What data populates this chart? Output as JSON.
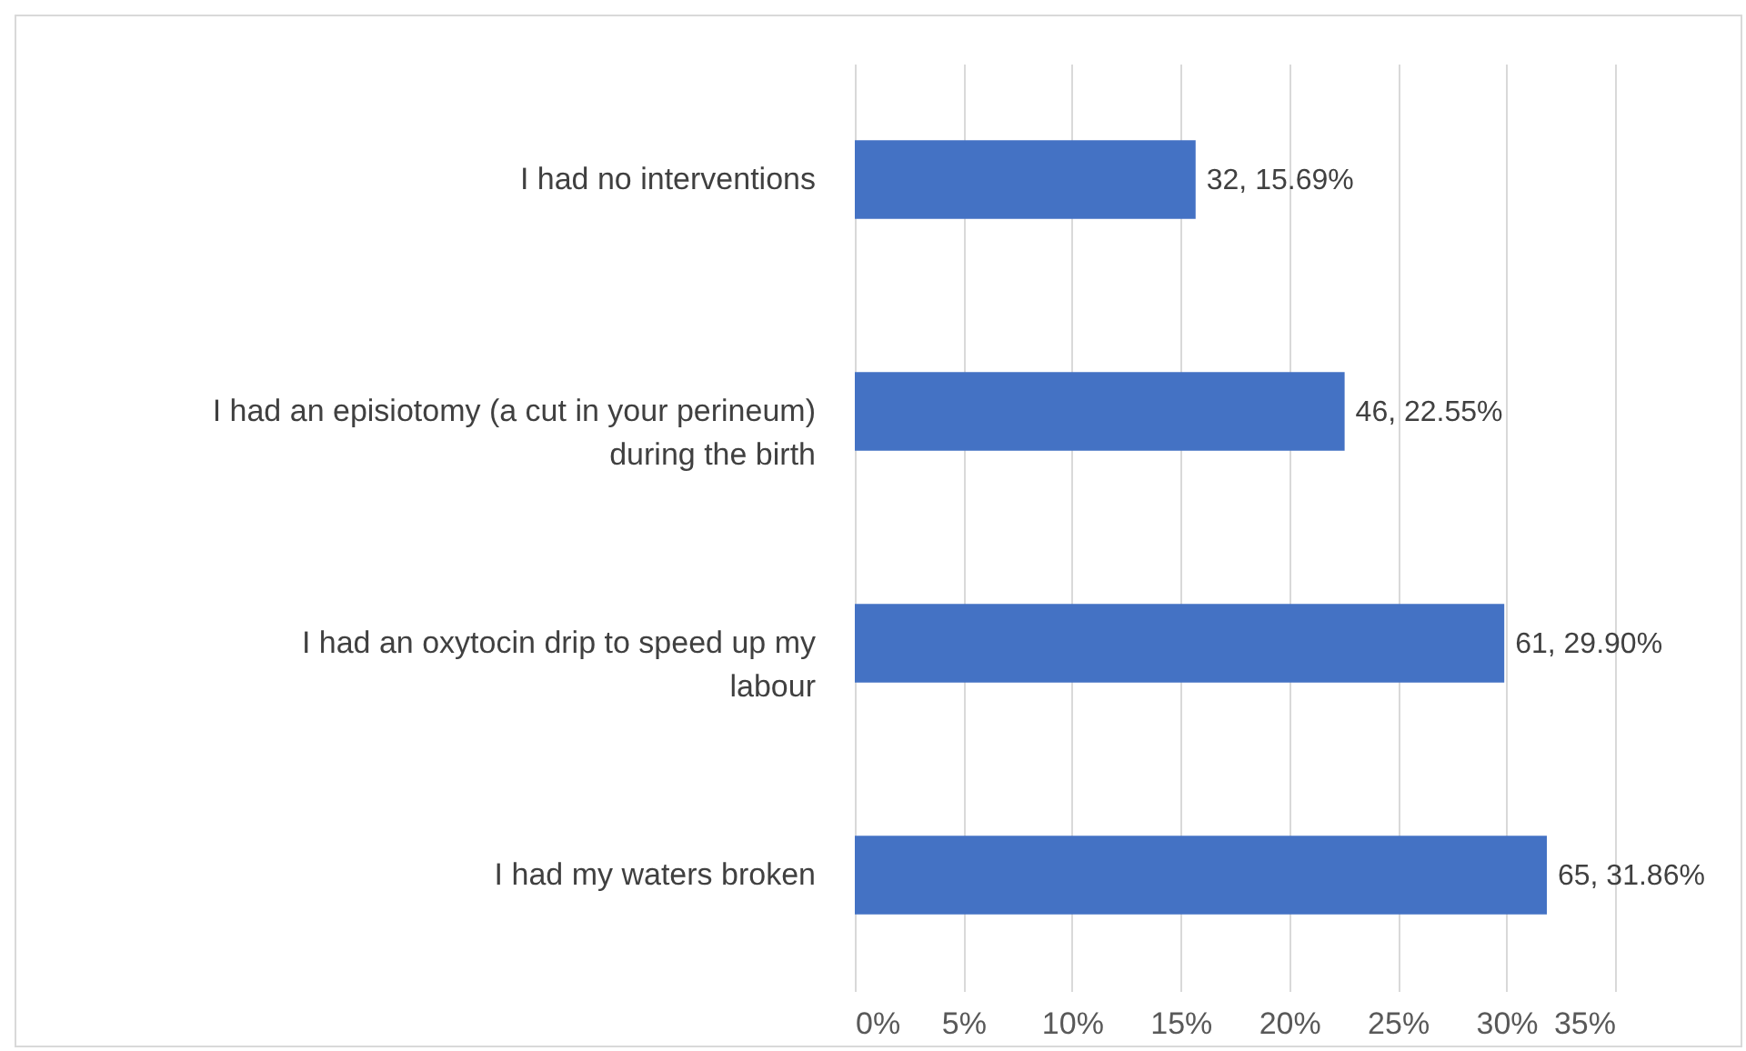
{
  "chart_data": {
    "type": "bar",
    "orientation": "horizontal",
    "categories": [
      "I had no interventions",
      "I had an episiotomy (a cut in your perineum)\nduring the birth",
      "I had an oxytocin drip to speed up my\nlabour",
      "I had my waters broken"
    ],
    "values": [
      15.69,
      22.55,
      29.9,
      31.86
    ],
    "value_labels": [
      "32, 15.69%",
      "46, 22.55%",
      "61, 29.90%",
      "65, 31.86%"
    ],
    "color": "#4472c4",
    "xlim": [
      0,
      35
    ],
    "xticks": [
      {
        "value": 0,
        "label": "0%"
      },
      {
        "value": 5,
        "label": "5%"
      },
      {
        "value": 10,
        "label": "10%"
      },
      {
        "value": 15,
        "label": "15%"
      },
      {
        "value": 20,
        "label": "20%"
      },
      {
        "value": 25,
        "label": "25%"
      },
      {
        "value": 30,
        "label": "30%"
      },
      {
        "value": 35,
        "label": "35%"
      }
    ],
    "grid": "x"
  }
}
